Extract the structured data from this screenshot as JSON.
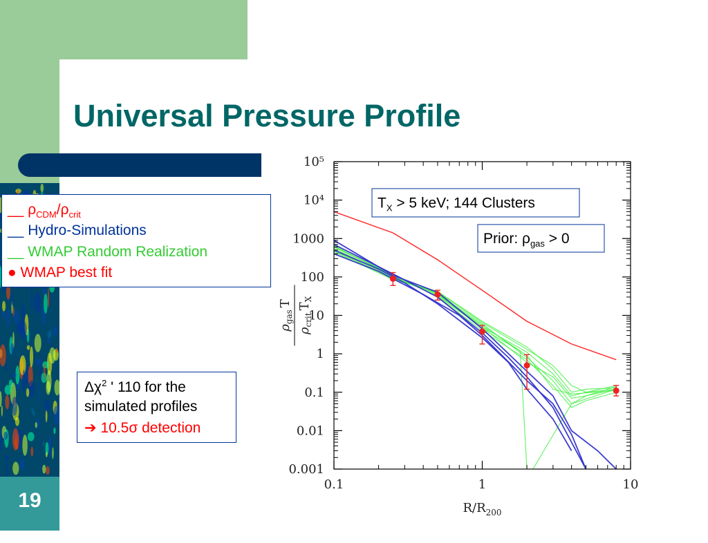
{
  "slide": {
    "title": "Universal Pressure Profile",
    "number": "19"
  },
  "legend": {
    "items": [
      {
        "marker": "__",
        "text": "ρ",
        "sub1": "CDM",
        "text2": "/ρ",
        "sub2": "crit",
        "color": "#ff0000"
      },
      {
        "marker": "__",
        "text": "Hydro-Simulations",
        "color": "#003399"
      },
      {
        "marker": "__",
        "text": "WMAP Random Realization",
        "color": "#33cc33"
      },
      {
        "marker": "●",
        "text": "WMAP best fit",
        "color": "#ff0000"
      }
    ]
  },
  "note": {
    "line1_sym": "Δχ",
    "line1_sup": "2",
    "line1_rest": " ' 110 for the",
    "line2": "simulated profiles",
    "line3_arrow": "➔",
    "line3": " 10.5σ detection",
    "arrow_color": "#ff0000"
  },
  "chart_data": {
    "type": "line",
    "x_scale": "log",
    "y_scale": "log",
    "xlim": [
      0.1,
      10
    ],
    "ylim": [
      0.001,
      100000
    ],
    "x_ticks": [
      "0.1",
      "1",
      "10"
    ],
    "y_ticks": [
      "0.001",
      "0.01",
      "0.1",
      "1",
      "10",
      "100",
      "1000",
      "10⁴",
      "10⁵"
    ],
    "xlabel": "R/R",
    "xlabel_sub": "200",
    "ylabel": {
      "top": "ρ",
      "top_sub": "gas",
      "top_rest": "T",
      "bottom": "ρ",
      "bottom_sub": "crit",
      "bottom_rest": "T",
      "bottom_rest_sub": "X"
    },
    "annotations": {
      "box1": {
        "text": "T",
        "sub": "X",
        "rest": " > 5 keV; 144 Clusters"
      },
      "box2": {
        "text": "Prior: ρ",
        "sub": "gas",
        "rest": " > 0"
      }
    },
    "series": [
      {
        "name": "ρCDM/ρcrit",
        "color": "#ff2222",
        "style": "line",
        "x": [
          0.1,
          0.25,
          0.5,
          1,
          2,
          4,
          8
        ],
        "y": [
          5000,
          1400,
          280,
          45,
          7,
          1.8,
          0.7
        ]
      },
      {
        "name": "WMAP best fit",
        "color": "#ee2222",
        "style": "points",
        "x": [
          0.25,
          0.5,
          1,
          2,
          8
        ],
        "y": [
          90,
          35,
          3.8,
          0.5,
          0.11
        ],
        "err_low": [
          60,
          25,
          1.8,
          0.12,
          0.08
        ],
        "err_high": [
          130,
          45,
          5.5,
          0.95,
          0.15
        ]
      },
      {
        "name": "Hydro-Simulations",
        "color": "#3333cc",
        "style": "lines",
        "curves": [
          {
            "x": [
              0.1,
              0.25,
              0.5,
              1,
              1.5,
              2,
              3,
              4,
              5
            ],
            "y": [
              700,
              120,
              30,
              3.5,
              0.8,
              0.25,
              0.04,
              0.005,
              0.001
            ]
          },
          {
            "x": [
              0.1,
              0.2,
              0.3,
              0.5,
              1,
              1.5,
              2,
              3,
              4
            ],
            "y": [
              500,
              160,
              70,
              20,
              2.6,
              0.6,
              0.12,
              0.02,
              0.003
            ]
          },
          {
            "x": [
              0.1,
              0.25,
              0.5,
              1,
              2,
              3,
              4,
              6,
              8
            ],
            "y": [
              900,
              110,
              40,
              4.5,
              0.35,
              0.08,
              0.01,
              0.003,
              0.001
            ]
          },
          {
            "x": [
              0.1,
              0.2,
              0.4,
              0.7,
              1,
              2,
              3,
              4,
              5
            ],
            "y": [
              400,
              140,
              35,
              10,
              3,
              0.2,
              0.05,
              0.008,
              0.001
            ]
          }
        ]
      },
      {
        "name": "WMAP Random Realization",
        "color": "#44ee44",
        "style": "lines",
        "curves": [
          {
            "x": [
              0.1,
              0.25,
              0.5,
              1,
              2,
              3,
              4,
              5,
              8
            ],
            "y": [
              600,
              110,
              35,
              6,
              0.8,
              0.2,
              0.05,
              0.08,
              0.12
            ]
          },
          {
            "x": [
              0.1,
              0.25,
              0.5,
              1,
              2,
              3,
              4,
              5,
              8
            ],
            "y": [
              500,
              95,
              38,
              5,
              1.1,
              0.3,
              0.08,
              0.1,
              0.15
            ]
          },
          {
            "x": [
              0.1,
              0.25,
              0.5,
              1,
              2,
              3,
              4,
              5,
              8
            ],
            "y": [
              700,
              120,
              30,
              4,
              0.7,
              0.15,
              0.04,
              0.06,
              0.1
            ]
          },
          {
            "x": [
              0.1,
              0.25,
              0.5,
              1,
              2,
              3,
              4,
              5,
              8
            ],
            "y": [
              450,
              85,
              42,
              7,
              1.5,
              0.4,
              0.1,
              0.12,
              0.13
            ]
          },
          {
            "x": [
              0.1,
              0.25,
              0.5,
              1,
              2,
              2.5,
              3,
              4,
              8
            ],
            "y": [
              550,
              100,
              33,
              5.5,
              0.9,
              0.3,
              0.12,
              0.09,
              0.11
            ]
          },
          {
            "x": [
              0.1,
              0.25,
              0.5,
              1,
              1.8,
              2,
              2.2,
              4,
              8
            ],
            "y": [
              650,
              105,
              36,
              4.5,
              1.2,
              0.001,
              0.001,
              0.05,
              0.12
            ]
          },
          {
            "x": [
              0.1,
              0.25,
              0.5,
              1,
              2,
              3,
              4,
              5,
              8
            ],
            "y": [
              480,
              90,
              40,
              6.5,
              1.3,
              0.5,
              0.15,
              0.1,
              0.12
            ]
          },
          {
            "x": [
              0.1,
              0.25,
              0.5,
              1,
              2,
              3,
              4,
              5,
              8
            ],
            "y": [
              620,
              115,
              31,
              5,
              0.6,
              0.25,
              0.07,
              0.08,
              0.14
            ]
          }
        ]
      }
    ]
  },
  "colors": {
    "title": "#006666",
    "accent_green": "#99cc99",
    "bar_blue": "#003366",
    "footer_teal": "#339999",
    "box_border": "#003399"
  }
}
